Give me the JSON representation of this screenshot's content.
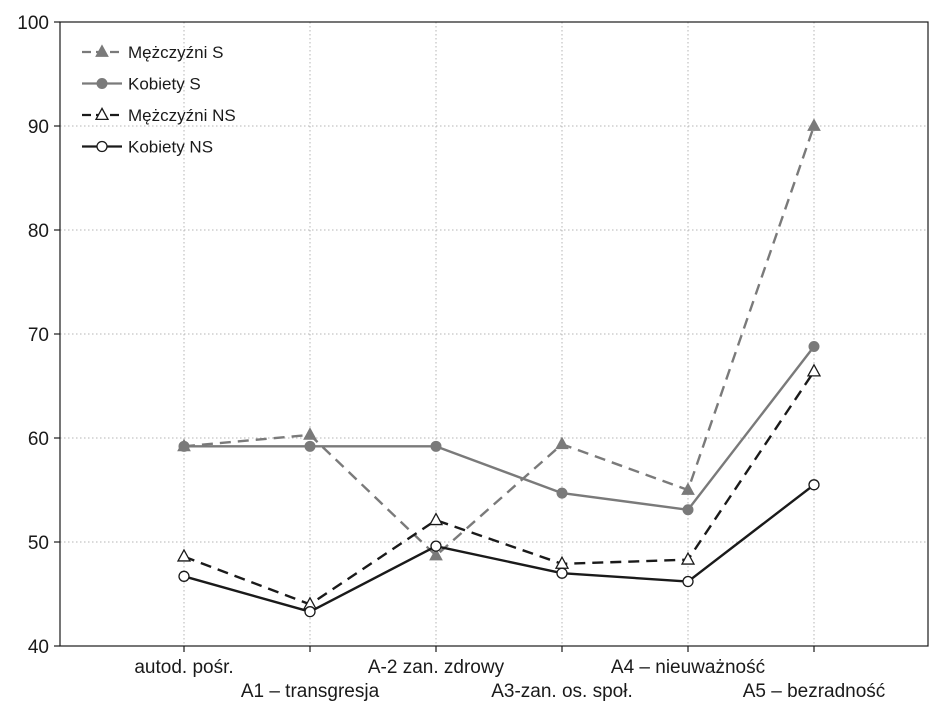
{
  "chart_data": {
    "type": "line",
    "title": "",
    "xlabel": "",
    "ylabel": "",
    "categories": [
      "autod. pośr.",
      "A1 – transgresja",
      "A-2 zan. zdrowy",
      "A3-zan. os. społ.",
      "A4 – nieuważność",
      "A5 – bezradność"
    ],
    "ylim": [
      40,
      100
    ],
    "yticks": [
      "40",
      "50",
      "60",
      "70",
      "80",
      "90",
      "100"
    ],
    "grid": true,
    "legend_position": "top-left",
    "series": [
      {
        "name": "Mężczyźni S",
        "values": [
          59.2,
          60.3,
          48.7,
          59.4,
          55.0,
          90.0
        ],
        "color": "#7a7a7a",
        "dash": "dashed",
        "marker": "filled-triangle"
      },
      {
        "name": "Kobiety S",
        "values": [
          59.2,
          59.2,
          59.2,
          54.7,
          53.1,
          68.8
        ],
        "color": "#7a7a7a",
        "dash": "solid",
        "marker": "filled-circle"
      },
      {
        "name": "Mężczyźni NS",
        "values": [
          48.6,
          44.0,
          52.1,
          47.9,
          48.3,
          66.4
        ],
        "color": "#1a1a1a",
        "dash": "dashed",
        "marker": "open-triangle"
      },
      {
        "name": "Kobiety NS",
        "values": [
          46.7,
          43.3,
          49.6,
          47.0,
          46.2,
          55.5
        ],
        "color": "#1a1a1a",
        "dash": "solid",
        "marker": "open-circle"
      }
    ]
  }
}
